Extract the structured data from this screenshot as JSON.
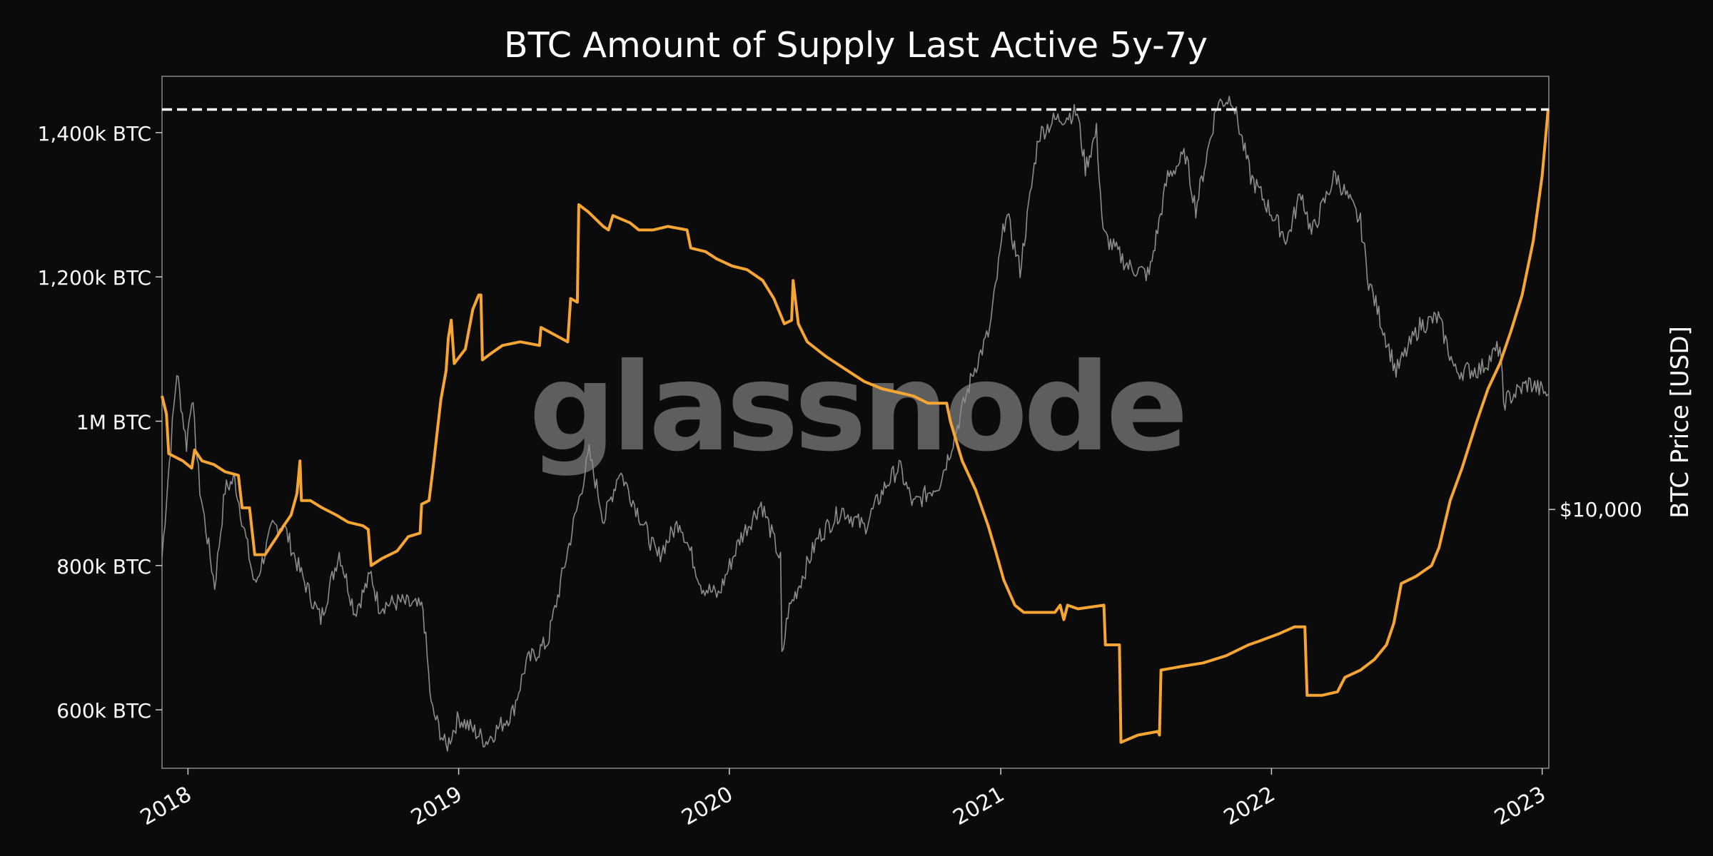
{
  "chart_data": {
    "type": "line",
    "title": "BTC Amount of Supply Last Active 5y-7y",
    "y_right_label": "BTC Price [USD]",
    "watermark": "glassnode",
    "x_range": [
      "2017-11-27",
      "2023-01-10"
    ],
    "x_ticks": [
      "2018",
      "2019",
      "2020",
      "2021",
      "2022",
      "2023"
    ],
    "y_left_range_kbtc": [
      519,
      1478
    ],
    "y_left_ticks": [
      {
        "value": 600,
        "label": "600k BTC"
      },
      {
        "value": 800,
        "label": "800k BTC"
      },
      {
        "value": 1000,
        "label": "1M BTC"
      },
      {
        "value": 1200,
        "label": "1,200k BTC"
      },
      {
        "value": 1400,
        "label": "1,400k BTC"
      }
    ],
    "y_right_scale": "log",
    "y_right_range_usd": [
      3000,
      75000
    ],
    "y_right_ticks": [
      {
        "value": 10000,
        "label": "$10,000"
      }
    ],
    "reference_line": {
      "value_kbtc": 1432,
      "style": "dashed"
    },
    "grid": false,
    "series": [
      {
        "axis": "left",
        "color": "#f7a633",
        "points": [
          [
            "2017-11-27",
            1035
          ],
          [
            "2017-12-03",
            1010
          ],
          [
            "2017-12-06",
            955
          ],
          [
            "2017-12-25",
            945
          ],
          [
            "2018-01-06",
            935
          ],
          [
            "2018-01-10",
            960
          ],
          [
            "2018-01-20",
            945
          ],
          [
            "2018-02-05",
            940
          ],
          [
            "2018-02-20",
            930
          ],
          [
            "2018-03-10",
            925
          ],
          [
            "2018-03-15",
            880
          ],
          [
            "2018-03-25",
            880
          ],
          [
            "2018-04-01",
            815
          ],
          [
            "2018-04-15",
            815
          ],
          [
            "2018-05-01",
            840
          ],
          [
            "2018-05-10",
            855
          ],
          [
            "2018-05-20",
            870
          ],
          [
            "2018-05-28",
            900
          ],
          [
            "2018-06-01",
            945
          ],
          [
            "2018-06-03",
            890
          ],
          [
            "2018-06-15",
            890
          ],
          [
            "2018-07-01",
            880
          ],
          [
            "2018-07-20",
            870
          ],
          [
            "2018-08-05",
            860
          ],
          [
            "2018-08-25",
            855
          ],
          [
            "2018-09-01",
            850
          ],
          [
            "2018-09-05",
            800
          ],
          [
            "2018-09-20",
            810
          ],
          [
            "2018-10-10",
            820
          ],
          [
            "2018-10-25",
            840
          ],
          [
            "2018-11-10",
            845
          ],
          [
            "2018-11-12",
            885
          ],
          [
            "2018-11-22",
            890
          ],
          [
            "2018-11-28",
            940
          ],
          [
            "2018-12-08",
            1030
          ],
          [
            "2018-12-15",
            1070
          ],
          [
            "2018-12-18",
            1115
          ],
          [
            "2018-12-22",
            1140
          ],
          [
            "2018-12-26",
            1080
          ],
          [
            "2019-01-10",
            1100
          ],
          [
            "2019-01-20",
            1155
          ],
          [
            "2019-01-28",
            1175
          ],
          [
            "2019-01-31",
            1175
          ],
          [
            "2019-02-02",
            1085
          ],
          [
            "2019-02-15",
            1095
          ],
          [
            "2019-03-01",
            1105
          ],
          [
            "2019-03-25",
            1110
          ],
          [
            "2019-04-20",
            1105
          ],
          [
            "2019-04-22",
            1130
          ],
          [
            "2019-05-10",
            1120
          ],
          [
            "2019-05-28",
            1110
          ],
          [
            "2019-06-01",
            1170
          ],
          [
            "2019-06-10",
            1165
          ],
          [
            "2019-06-12",
            1300
          ],
          [
            "2019-06-25",
            1290
          ],
          [
            "2019-07-15",
            1270
          ],
          [
            "2019-07-22",
            1265
          ],
          [
            "2019-07-28",
            1285
          ],
          [
            "2019-08-20",
            1275
          ],
          [
            "2019-09-01",
            1265
          ],
          [
            "2019-09-20",
            1265
          ],
          [
            "2019-10-10",
            1270
          ],
          [
            "2019-11-05",
            1265
          ],
          [
            "2019-11-10",
            1240
          ],
          [
            "2019-11-30",
            1235
          ],
          [
            "2019-12-15",
            1225
          ],
          [
            "2020-01-05",
            1215
          ],
          [
            "2020-01-25",
            1210
          ],
          [
            "2020-02-15",
            1195
          ],
          [
            "2020-03-01",
            1170
          ],
          [
            "2020-03-15",
            1135
          ],
          [
            "2020-03-25",
            1140
          ],
          [
            "2020-03-27",
            1195
          ],
          [
            "2020-04-03",
            1135
          ],
          [
            "2020-04-15",
            1110
          ],
          [
            "2020-05-10",
            1090
          ],
          [
            "2020-06-01",
            1075
          ],
          [
            "2020-07-01",
            1055
          ],
          [
            "2020-07-25",
            1045
          ],
          [
            "2020-08-15",
            1040
          ],
          [
            "2020-09-05",
            1035
          ],
          [
            "2020-09-25",
            1025
          ],
          [
            "2020-10-20",
            1025
          ],
          [
            "2020-10-25",
            1000
          ],
          [
            "2020-11-10",
            945
          ],
          [
            "2020-11-28",
            905
          ],
          [
            "2020-12-15",
            855
          ],
          [
            "2020-12-25",
            820
          ],
          [
            "2021-01-05",
            780
          ],
          [
            "2021-01-20",
            745
          ],
          [
            "2021-02-01",
            735
          ],
          [
            "2021-02-20",
            735
          ],
          [
            "2021-03-15",
            735
          ],
          [
            "2021-03-22",
            745
          ],
          [
            "2021-03-27",
            725
          ],
          [
            "2021-04-01",
            745
          ],
          [
            "2021-04-15",
            740
          ],
          [
            "2021-05-20",
            745
          ],
          [
            "2021-05-22",
            690
          ],
          [
            "2021-06-10",
            690
          ],
          [
            "2021-06-12",
            555
          ],
          [
            "2021-07-05",
            565
          ],
          [
            "2021-08-01",
            570
          ],
          [
            "2021-08-03",
            565
          ],
          [
            "2021-08-05",
            655
          ],
          [
            "2021-09-01",
            660
          ],
          [
            "2021-10-01",
            665
          ],
          [
            "2021-11-01",
            675
          ],
          [
            "2021-12-01",
            690
          ],
          [
            "2021-12-15",
            695
          ],
          [
            "2022-01-10",
            705
          ],
          [
            "2022-02-01",
            715
          ],
          [
            "2022-02-15",
            715
          ],
          [
            "2022-02-18",
            620
          ],
          [
            "2022-03-10",
            620
          ],
          [
            "2022-03-31",
            625
          ],
          [
            "2022-04-10",
            645
          ],
          [
            "2022-05-01",
            655
          ],
          [
            "2022-05-20",
            670
          ],
          [
            "2022-06-05",
            690
          ],
          [
            "2022-06-15",
            720
          ],
          [
            "2022-06-25",
            775
          ],
          [
            "2022-07-15",
            785
          ],
          [
            "2022-08-05",
            800
          ],
          [
            "2022-08-15",
            825
          ],
          [
            "2022-08-30",
            890
          ],
          [
            "2022-09-15",
            935
          ],
          [
            "2022-10-05",
            1000
          ],
          [
            "2022-10-20",
            1045
          ],
          [
            "2022-11-05",
            1080
          ],
          [
            "2022-11-20",
            1125
          ],
          [
            "2022-12-05",
            1175
          ],
          [
            "2022-12-20",
            1250
          ],
          [
            "2023-01-01",
            1340
          ],
          [
            "2023-01-09",
            1432
          ]
        ]
      },
      {
        "axis": "right",
        "color": "#8c8c8c",
        "points": [
          [
            "2017-11-27",
            8000
          ],
          [
            "2017-12-05",
            11500
          ],
          [
            "2017-12-17",
            19000
          ],
          [
            "2017-12-30",
            13500
          ],
          [
            "2018-01-06",
            17000
          ],
          [
            "2018-01-17",
            11000
          ],
          [
            "2018-02-06",
            7000
          ],
          [
            "2018-02-20",
            11000
          ],
          [
            "2018-03-05",
            11500
          ],
          [
            "2018-04-01",
            7000
          ],
          [
            "2018-04-25",
            9200
          ],
          [
            "2018-05-10",
            9300
          ],
          [
            "2018-06-01",
            7500
          ],
          [
            "2018-06-29",
            6000
          ],
          [
            "2018-07-24",
            8200
          ],
          [
            "2018-08-14",
            6200
          ],
          [
            "2018-09-05",
            7400
          ],
          [
            "2018-09-15",
            6400
          ],
          [
            "2018-10-15",
            6500
          ],
          [
            "2018-11-14",
            6300
          ],
          [
            "2018-11-25",
            4000
          ],
          [
            "2018-12-15",
            3300
          ],
          [
            "2019-01-01",
            3800
          ],
          [
            "2019-02-07",
            3400
          ],
          [
            "2019-03-15",
            3900
          ],
          [
            "2019-04-02",
            4900
          ],
          [
            "2019-05-01",
            5400
          ],
          [
            "2019-05-30",
            8500
          ],
          [
            "2019-06-26",
            13000
          ],
          [
            "2019-07-16",
            9500
          ],
          [
            "2019-08-06",
            12000
          ],
          [
            "2019-09-01",
            9800
          ],
          [
            "2019-09-26",
            8000
          ],
          [
            "2019-10-26",
            9500
          ],
          [
            "2019-11-25",
            7000
          ],
          [
            "2019-12-17",
            6700
          ],
          [
            "2020-01-15",
            8700
          ],
          [
            "2020-02-13",
            10300
          ],
          [
            "2020-03-10",
            7900
          ],
          [
            "2020-03-12",
            5000
          ],
          [
            "2020-03-20",
            6200
          ],
          [
            "2020-04-30",
            8800
          ],
          [
            "2020-06-01",
            10000
          ],
          [
            "2020-07-01",
            9200
          ],
          [
            "2020-07-30",
            11200
          ],
          [
            "2020-08-17",
            12200
          ],
          [
            "2020-09-05",
            10200
          ],
          [
            "2020-10-10",
            11300
          ],
          [
            "2020-10-25",
            13200
          ],
          [
            "2020-11-25",
            19000
          ],
          [
            "2020-12-17",
            23000
          ],
          [
            "2021-01-08",
            40000
          ],
          [
            "2021-01-27",
            30500
          ],
          [
            "2021-02-21",
            57000
          ],
          [
            "2021-03-13",
            61000
          ],
          [
            "2021-04-14",
            63500
          ],
          [
            "2021-04-25",
            49000
          ],
          [
            "2021-05-10",
            58000
          ],
          [
            "2021-05-19",
            36000
          ],
          [
            "2021-06-22",
            31000
          ],
          [
            "2021-07-20",
            29800
          ],
          [
            "2021-08-14",
            47000
          ],
          [
            "2021-09-07",
            52000
          ],
          [
            "2021-09-21",
            40500
          ],
          [
            "2021-10-20",
            66000
          ],
          [
            "2021-11-09",
            68000
          ],
          [
            "2021-12-04",
            47000
          ],
          [
            "2022-01-22",
            35000
          ],
          [
            "2022-02-10",
            44000
          ],
          [
            "2022-02-24",
            36000
          ],
          [
            "2022-03-28",
            47500
          ],
          [
            "2022-05-01",
            38000
          ],
          [
            "2022-05-12",
            29000
          ],
          [
            "2022-06-18",
            19000
          ],
          [
            "2022-07-20",
            23500
          ],
          [
            "2022-08-14",
            24400
          ],
          [
            "2022-09-06",
            19000
          ],
          [
            "2022-10-10",
            19200
          ],
          [
            "2022-11-05",
            21300
          ],
          [
            "2022-11-10",
            16500
          ],
          [
            "2022-12-14",
            18000
          ],
          [
            "2023-01-09",
            17100
          ]
        ]
      }
    ]
  }
}
